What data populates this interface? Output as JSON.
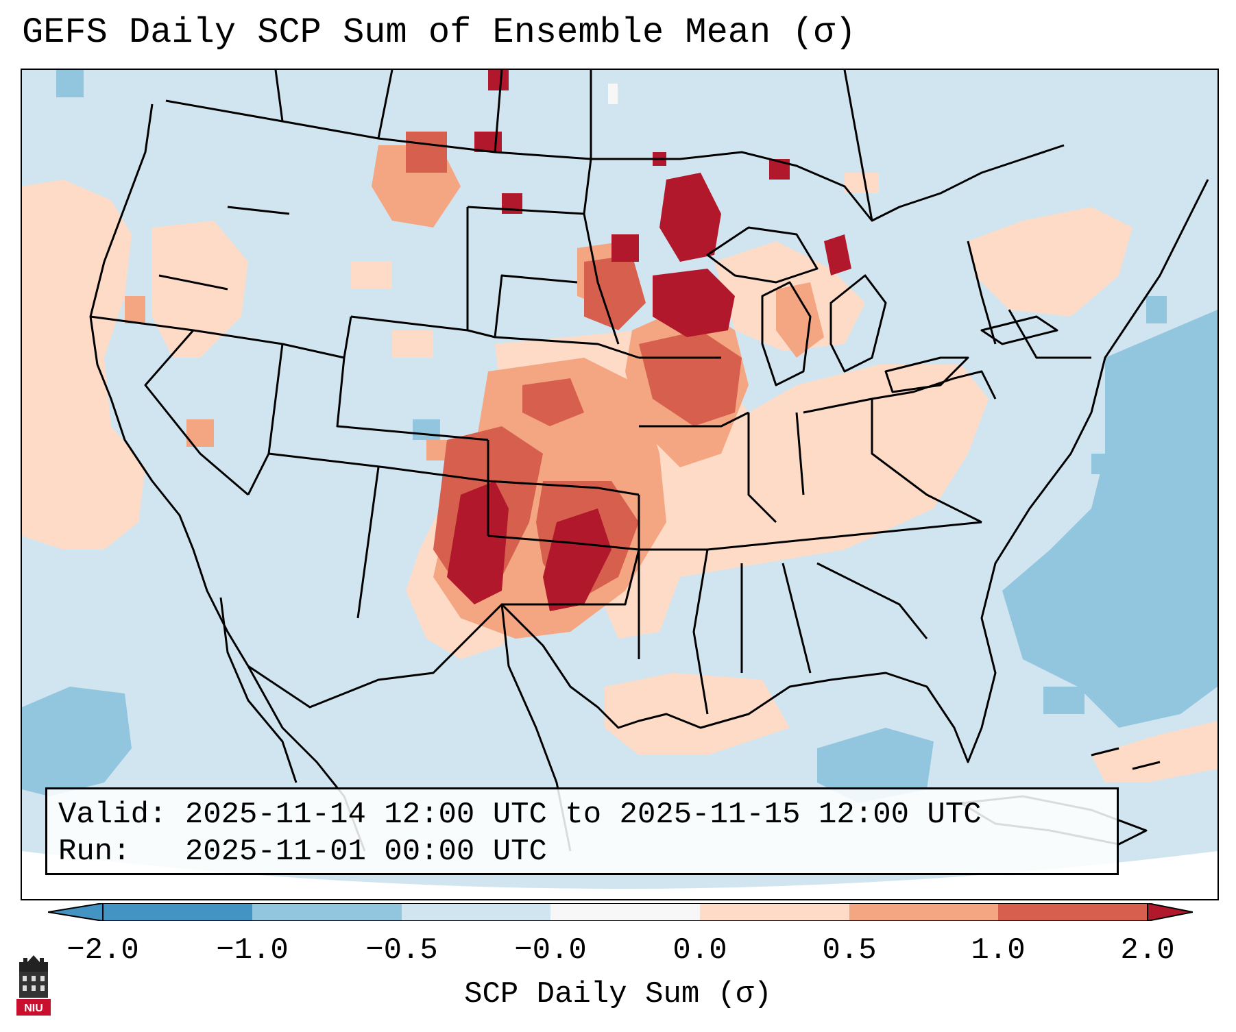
{
  "title": "GEFS Daily SCP Sum of Ensemble Mean (σ)",
  "info": {
    "valid_label": "Valid:",
    "valid_value": "2025-11-14 12:00 UTC to 2025-11-15 12:00 UTC",
    "run_label": "Run:",
    "run_value": "2025-11-01 00:00 UTC"
  },
  "colorbar": {
    "label": "SCP Daily Sum (σ)",
    "ticks": [
      "−2.0",
      "−1.0",
      "−0.5",
      "−0.0",
      "0.0",
      "0.5",
      "1.0",
      "2.0"
    ],
    "colors": [
      "#4393c3",
      "#92c5de",
      "#d1e5f0",
      "#f7f7f7",
      "#fddbc7",
      "#f4a582",
      "#d6604d",
      "#b2182b"
    ],
    "extend": "both"
  },
  "map": {
    "background_color": "#d1e5f0",
    "offmap_color": "#ffffff",
    "region": "CONUS"
  },
  "logo": {
    "name": "niu-logo",
    "text": "NIU",
    "color": "#c8102e"
  }
}
